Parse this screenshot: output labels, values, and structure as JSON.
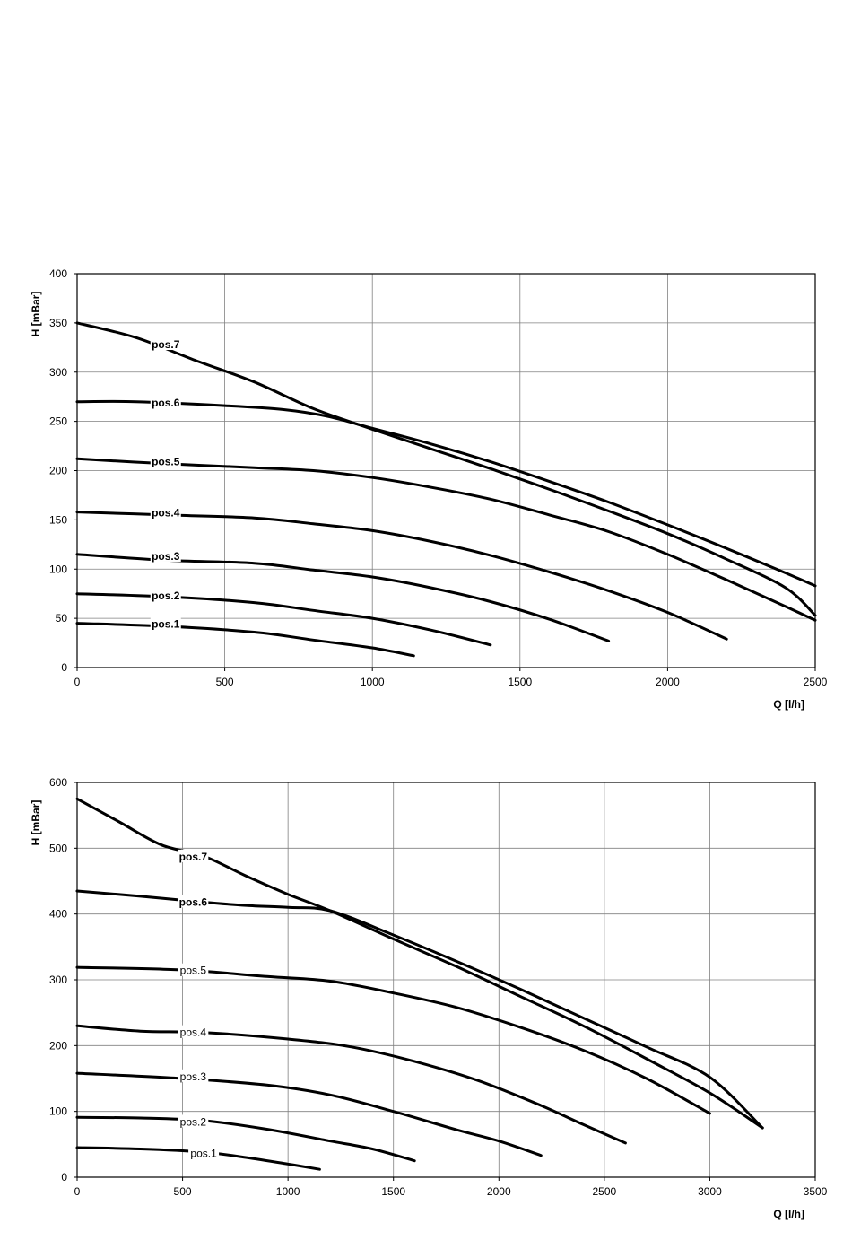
{
  "chart_data": [
    {
      "type": "line",
      "xlabel": "Q [l/h]",
      "ylabel": "H [mBar]",
      "xlim": [
        0,
        2500
      ],
      "ylim": [
        0,
        400
      ],
      "xticks": [
        0,
        500,
        1000,
        1500,
        2000,
        2500
      ],
      "yticks": [
        0,
        50,
        100,
        150,
        200,
        250,
        300,
        350,
        400
      ],
      "grid": true,
      "label_weight": "bold",
      "series": [
        {
          "name": "pos.1",
          "label_at": [
            300,
            44
          ],
          "x": [
            0,
            300,
            600,
            800,
            1000,
            1140
          ],
          "y": [
            45,
            42,
            36,
            28,
            20,
            12
          ]
        },
        {
          "name": "pos.2",
          "label_at": [
            300,
            73
          ],
          "x": [
            0,
            300,
            600,
            800,
            1000,
            1200,
            1400
          ],
          "y": [
            75,
            72,
            66,
            58,
            50,
            38,
            23
          ]
        },
        {
          "name": "pos.3",
          "label_at": [
            300,
            113
          ],
          "x": [
            0,
            300,
            600,
            800,
            1000,
            1200,
            1400,
            1600,
            1800
          ],
          "y": [
            115,
            109,
            106,
            99,
            92,
            81,
            67,
            49,
            27
          ]
        },
        {
          "name": "pos.4",
          "label_at": [
            300,
            157
          ],
          "x": [
            0,
            300,
            600,
            800,
            1000,
            1200,
            1400,
            1600,
            1800,
            2000,
            2200
          ],
          "y": [
            158,
            155,
            152,
            146,
            139,
            128,
            114,
            97,
            78,
            56,
            29
          ]
        },
        {
          "name": "pos.5",
          "label_at": [
            300,
            209
          ],
          "x": [
            0,
            300,
            600,
            800,
            1000,
            1200,
            1400,
            1600,
            1800,
            2000,
            2200,
            2400,
            2500
          ],
          "y": [
            212,
            207,
            203,
            200,
            193,
            183,
            171,
            155,
            138,
            115,
            89,
            62,
            48
          ]
        },
        {
          "name": "pos.6",
          "label_at": [
            300,
            269
          ],
          "x": [
            0,
            200,
            500,
            700,
            850,
            1000,
            1200,
            1400,
            1600,
            1800,
            2000,
            2200,
            2400,
            2500
          ],
          "y": [
            270,
            270,
            266,
            262,
            255,
            243,
            227,
            209,
            189,
            168,
            145,
            121,
            96,
            83
          ]
        },
        {
          "name": "pos.7",
          "label_at": [
            300,
            328
          ],
          "x": [
            0,
            200,
            400,
            600,
            800,
            1000,
            1200,
            1400,
            1600,
            1800,
            2000,
            2200,
            2400,
            2500
          ],
          "y": [
            350,
            335,
            312,
            290,
            263,
            242,
            222,
            202,
            181,
            159,
            136,
            110,
            81,
            53
          ]
        }
      ]
    },
    {
      "type": "line",
      "xlabel": "Q [l/h]",
      "ylabel": "H [mBar]",
      "xlim": [
        0,
        3500
      ],
      "ylim": [
        0,
        600
      ],
      "xticks": [
        0,
        500,
        1000,
        1500,
        2000,
        2500,
        3000,
        3500
      ],
      "yticks": [
        0,
        100,
        200,
        300,
        400,
        500,
        600
      ],
      "grid": true,
      "label_weight": "mixed",
      "series": [
        {
          "name": "pos.1",
          "label_at": [
            600,
            36
          ],
          "label_bold": false,
          "x": [
            0,
            300,
            600,
            800,
            1000,
            1150
          ],
          "y": [
            45,
            43,
            38,
            30,
            20,
            12
          ]
        },
        {
          "name": "pos.2",
          "label_at": [
            550,
            84
          ],
          "label_bold": false,
          "x": [
            0,
            300,
            600,
            900,
            1200,
            1400,
            1600
          ],
          "y": [
            91,
            90,
            86,
            73,
            55,
            43,
            25
          ]
        },
        {
          "name": "pos.3",
          "label_at": [
            550,
            153
          ],
          "label_bold": false,
          "x": [
            0,
            500,
            900,
            1200,
            1500,
            1800,
            2000,
            2200
          ],
          "y": [
            158,
            150,
            140,
            125,
            100,
            72,
            55,
            33
          ]
        },
        {
          "name": "pos.4",
          "label_at": [
            550,
            220
          ],
          "label_bold": false,
          "x": [
            0,
            300,
            600,
            1000,
            1300,
            1600,
            1900,
            2200,
            2400,
            2600
          ],
          "y": [
            230,
            222,
            220,
            210,
            198,
            176,
            147,
            109,
            80,
            52
          ]
        },
        {
          "name": "pos.5",
          "label_at": [
            550,
            314
          ],
          "label_bold": false,
          "x": [
            0,
            500,
            900,
            1200,
            1500,
            1800,
            2100,
            2400,
            2700,
            3000
          ],
          "y": [
            319,
            315,
            305,
            298,
            280,
            258,
            228,
            193,
            150,
            97
          ]
        },
        {
          "name": "pos.6",
          "label_at": [
            550,
            418
          ],
          "label_bold": true,
          "x": [
            0,
            300,
            600,
            800,
            1000,
            1200,
            1500,
            1800,
            2100,
            2400,
            2700,
            3000,
            3250
          ],
          "y": [
            435,
            427,
            418,
            413,
            410,
            405,
            368,
            328,
            286,
            242,
            198,
            152,
            75
          ]
        },
        {
          "name": "pos.7",
          "label_at": [
            550,
            487
          ],
          "label_bold": true,
          "x": [
            0,
            200,
            400,
            600,
            800,
            1000,
            1200,
            1500,
            1800,
            2100,
            2400,
            2700,
            3000,
            3250
          ],
          "y": [
            575,
            540,
            505,
            488,
            458,
            430,
            405,
            362,
            320,
            275,
            230,
            180,
            128,
            75
          ]
        }
      ]
    }
  ]
}
